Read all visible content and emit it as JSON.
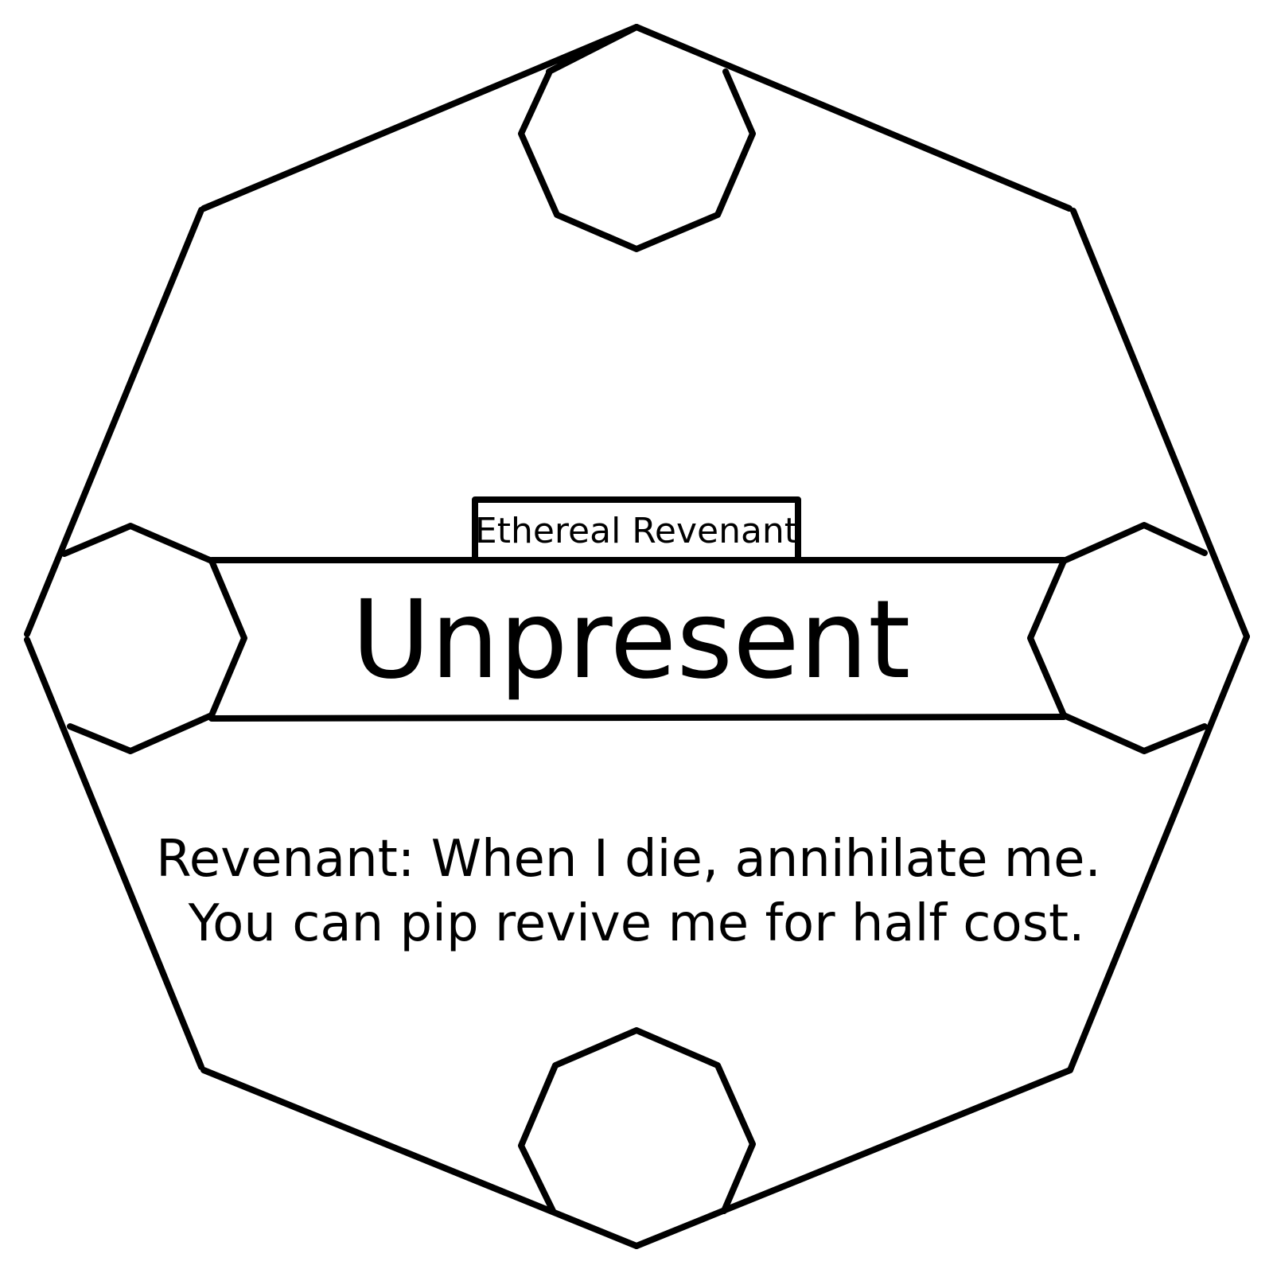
{
  "card": {
    "subtype": "Ethereal Revenant",
    "name": "Unpresent",
    "rules": {
      "keyword": "Revenant:",
      "line1_rest": " When I die, annihilate me.",
      "line2": "You can pip revive me for half cost."
    },
    "colors": {
      "ink": "#000000",
      "background": "#ffffff"
    }
  }
}
